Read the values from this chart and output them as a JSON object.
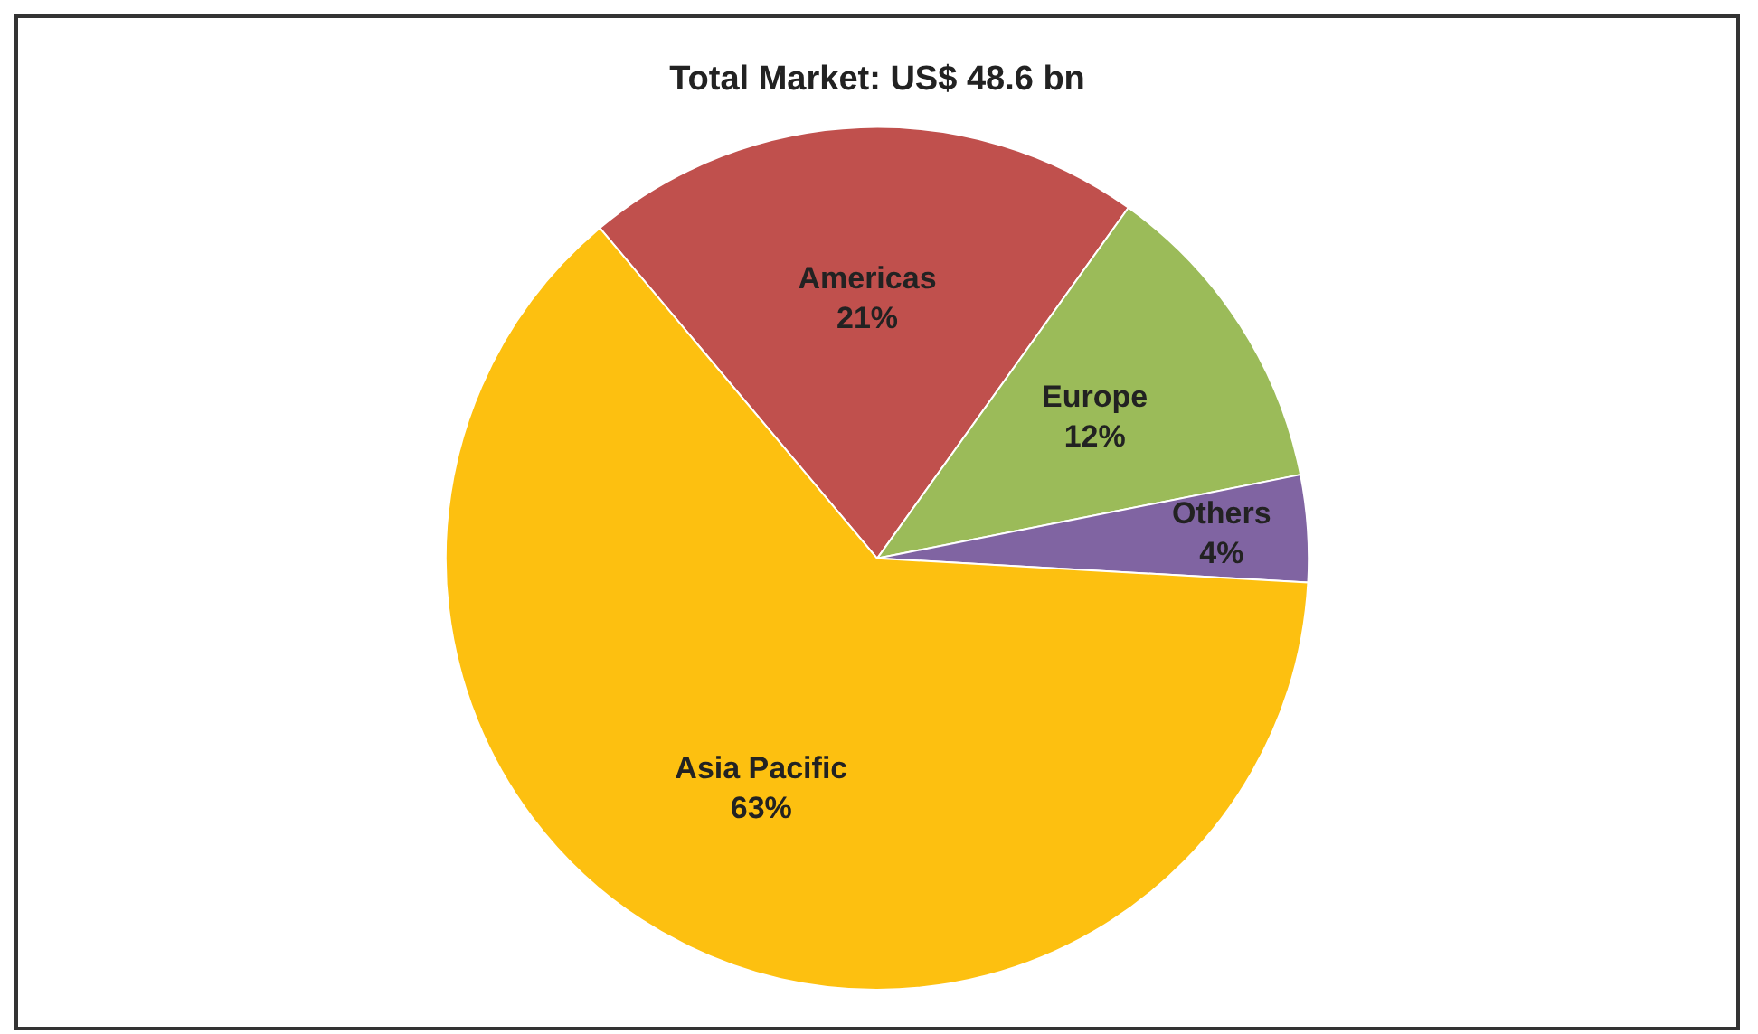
{
  "chart_data": {
    "type": "pie",
    "title": "Total Market: US$ 48.6 bn",
    "categories": [
      "Americas",
      "Europe",
      "Others",
      "Asia Pacific"
    ],
    "values": [
      21,
      12,
      4,
      63
    ],
    "colors": [
      "#c0504d",
      "#9bbb59",
      "#8064a2",
      "#fdc010"
    ],
    "value_labels": [
      "21%",
      "12%",
      "4%",
      "63%"
    ],
    "legend": false
  }
}
